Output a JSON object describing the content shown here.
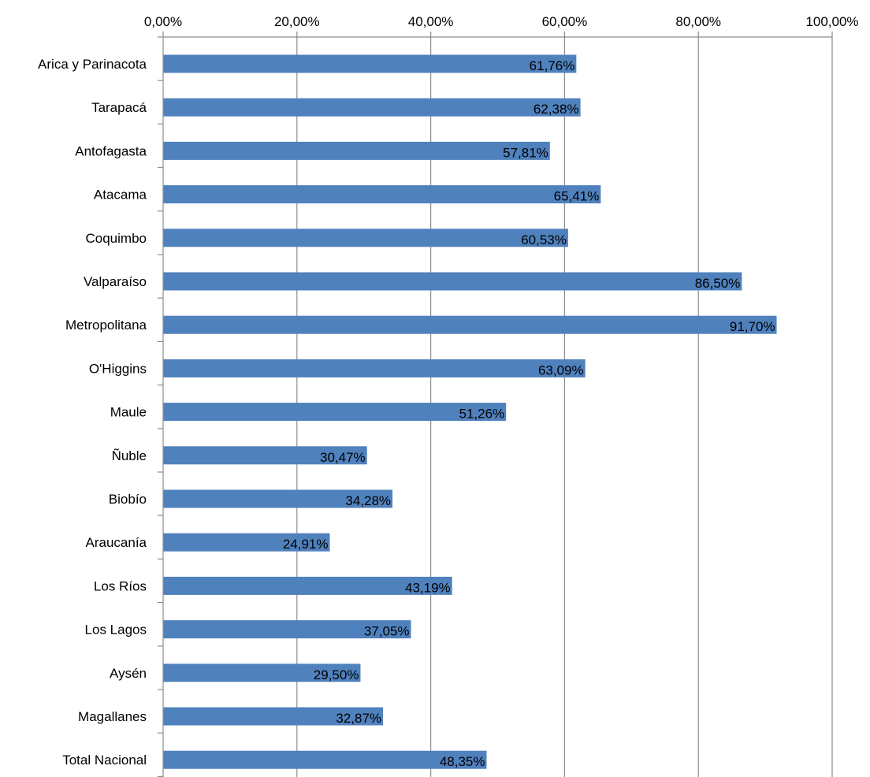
{
  "chart_data": {
    "type": "bar",
    "orientation": "horizontal",
    "categories": [
      "Arica y Parinacota",
      "Tarapacá",
      "Antofagasta",
      "Atacama",
      "Coquimbo",
      "Valparaíso",
      "Metropolitana",
      "O'Higgins",
      "Maule",
      "Ñuble",
      "Biobío",
      "Araucanía",
      "Los Ríos",
      "Los Lagos",
      "Aysén",
      "Magallanes",
      "Total Nacional"
    ],
    "values": [
      61.76,
      62.38,
      57.81,
      65.41,
      60.53,
      86.5,
      91.7,
      63.09,
      51.26,
      30.47,
      34.28,
      24.91,
      43.19,
      37.05,
      29.5,
      32.87,
      48.35
    ],
    "data_labels": [
      "61,76%",
      "62,38%",
      "57,81%",
      "65,41%",
      "60,53%",
      "86,50%",
      "91,70%",
      "63,09%",
      "51,26%",
      "30,47%",
      "34,28%",
      "24,91%",
      "43,19%",
      "37,05%",
      "29,50%",
      "32,87%",
      "48,35%"
    ],
    "x_ticks": [
      0,
      20,
      40,
      60,
      80,
      100
    ],
    "x_tick_labels": [
      "0,00%",
      "20,00%",
      "40,00%",
      "60,00%",
      "80,00%",
      "100,00%"
    ],
    "xlim": [
      0,
      100
    ],
    "x_axis_position": "top",
    "grid": true,
    "title": "",
    "xlabel": "",
    "ylabel": "",
    "colors": {
      "bar": "#4f81bd",
      "grid": "#8c8c8c",
      "text": "#000000"
    }
  }
}
